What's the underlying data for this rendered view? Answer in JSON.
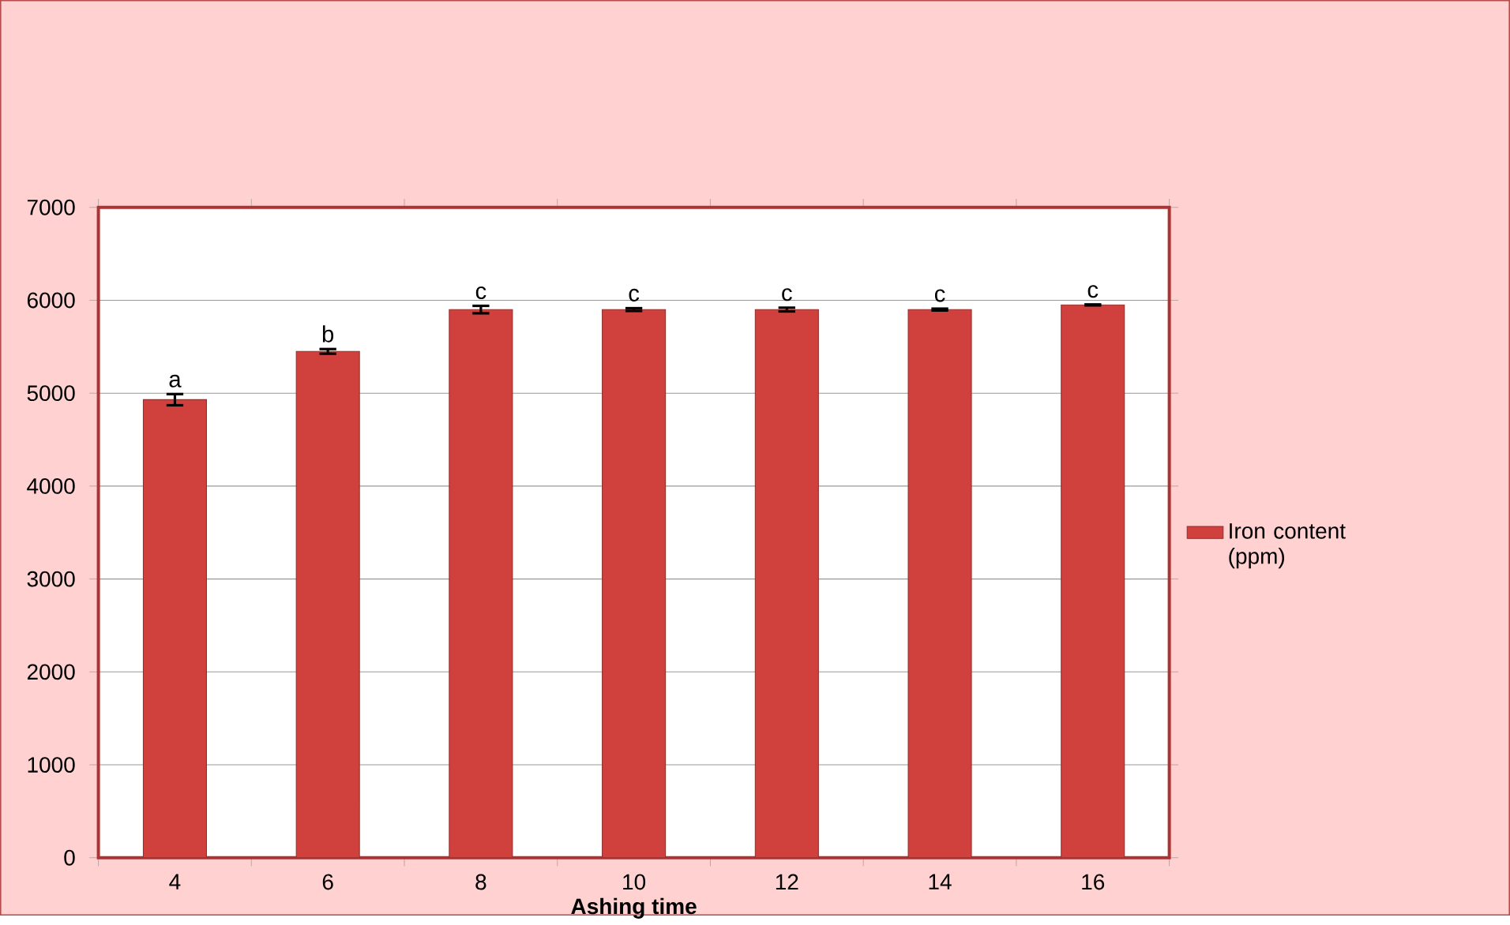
{
  "chart_data": {
    "type": "bar",
    "xlabel": "Ashing time",
    "categories": [
      "4",
      "6",
      "8",
      "10",
      "12",
      "14",
      "16"
    ],
    "series": [
      {
        "name": "Iron content (ppm)",
        "color": "#d0413e",
        "values": [
          4930,
          5450,
          5900,
          5900,
          5900,
          5900,
          5950
        ],
        "errors": [
          60,
          25,
          40,
          15,
          20,
          10,
          5
        ]
      }
    ],
    "ylim": [
      0,
      7000
    ],
    "yticks": [
      0,
      1000,
      2000,
      3000,
      4000,
      5000,
      6000,
      7000
    ],
    "grid": "y",
    "legend": "right",
    "annotations": [
      {
        "text": "a",
        "x": "4",
        "y": 4990
      },
      {
        "text": "b",
        "x": "6",
        "y": 5475
      },
      {
        "text": "c",
        "x": "8",
        "y": 5940
      },
      {
        "text": "c",
        "x": "10",
        "y": 5915
      },
      {
        "text": "c",
        "x": "12",
        "y": 5920
      },
      {
        "text": "c",
        "x": "14",
        "y": 5910
      },
      {
        "text": "c",
        "x": "16",
        "y": 5955
      }
    ]
  }
}
